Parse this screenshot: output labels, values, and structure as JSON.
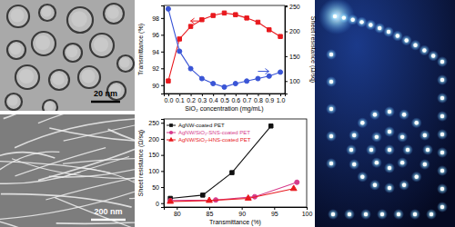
{
  "chart_data": [
    {
      "type": "line",
      "x_label": "SiO₂ concentration (mg/mL)",
      "y_label": "Transmittance (%)",
      "y2_label": "Sheet resistance (Ω/sq)",
      "x": [
        0.0,
        0.1,
        0.2,
        0.3,
        0.4,
        0.5,
        0.6,
        0.7,
        0.8,
        0.9,
        1.0
      ],
      "xlim": [
        -0.04,
        1.04
      ],
      "xticks": [
        {
          "value": 0.0,
          "label": "0.0"
        },
        {
          "value": 0.1,
          "label": "0.1"
        },
        {
          "value": 0.2,
          "label": "0.2"
        },
        {
          "value": 0.3,
          "label": "0.3"
        },
        {
          "value": 0.4,
          "label": "0.4"
        },
        {
          "value": 0.5,
          "label": "0.5"
        },
        {
          "value": 0.6,
          "label": "0.6"
        },
        {
          "value": 0.7,
          "label": "0.7"
        },
        {
          "value": 0.8,
          "label": "0.8"
        },
        {
          "value": 0.9,
          "label": "0.9"
        },
        {
          "value": 1.0,
          "label": "1.0"
        }
      ],
      "ylim": [
        89,
        99.5
      ],
      "yticks": [
        90,
        92,
        94,
        96,
        98
      ],
      "y2lim": [
        75,
        252
      ],
      "y2ticks": [
        100,
        150,
        200,
        250
      ],
      "series": [
        {
          "color": "#e8191e",
          "marker": "square",
          "values": [
            90.5,
            95.5,
            97.0,
            97.8,
            98.3,
            98.6,
            98.4,
            98.0,
            97.5,
            96.6,
            95.8
          ]
        },
        {
          "color": "#3a55d6",
          "marker": "circle",
          "axis": "y2",
          "values": [
            245,
            160,
            125,
            105,
            95,
            88,
            95,
            100,
            105,
            110,
            118
          ]
        }
      ]
    },
    {
      "type": "line",
      "x_label": "Transmittance (%)",
      "y_label": "Sheet resistance (Ω/sq)",
      "xlim": [
        78,
        100
      ],
      "xticks": [
        80,
        85,
        90,
        95,
        100
      ],
      "ylim": [
        -12,
        262
      ],
      "yticks": [
        0,
        50,
        100,
        150,
        200,
        250
      ],
      "legend": "top-left",
      "series": [
        {
          "name": "AgNW-coated PET",
          "color": "#111111",
          "marker": "square",
          "x": [
            79,
            84,
            88.5,
            94.5
          ],
          "values": [
            15,
            25,
            95,
            240
          ]
        },
        {
          "name": "AgNW/SiO₂-SNS-coated PET",
          "color": "#d63c8c",
          "marker": "circle",
          "x": [
            79,
            86,
            92,
            98.5
          ],
          "values": [
            8,
            10,
            20,
            65
          ]
        },
        {
          "name": "AgNW/SiO₂-HNS-coated PET",
          "color": "#e8191e",
          "marker": "triangle",
          "x": [
            79,
            85,
            91,
            98
          ],
          "values": [
            5,
            8,
            15,
            45
          ]
        }
      ]
    }
  ],
  "panels": {
    "tem": {
      "scale_bar": "20 nm"
    },
    "sem": {
      "scale_bar": "200 nm"
    }
  }
}
